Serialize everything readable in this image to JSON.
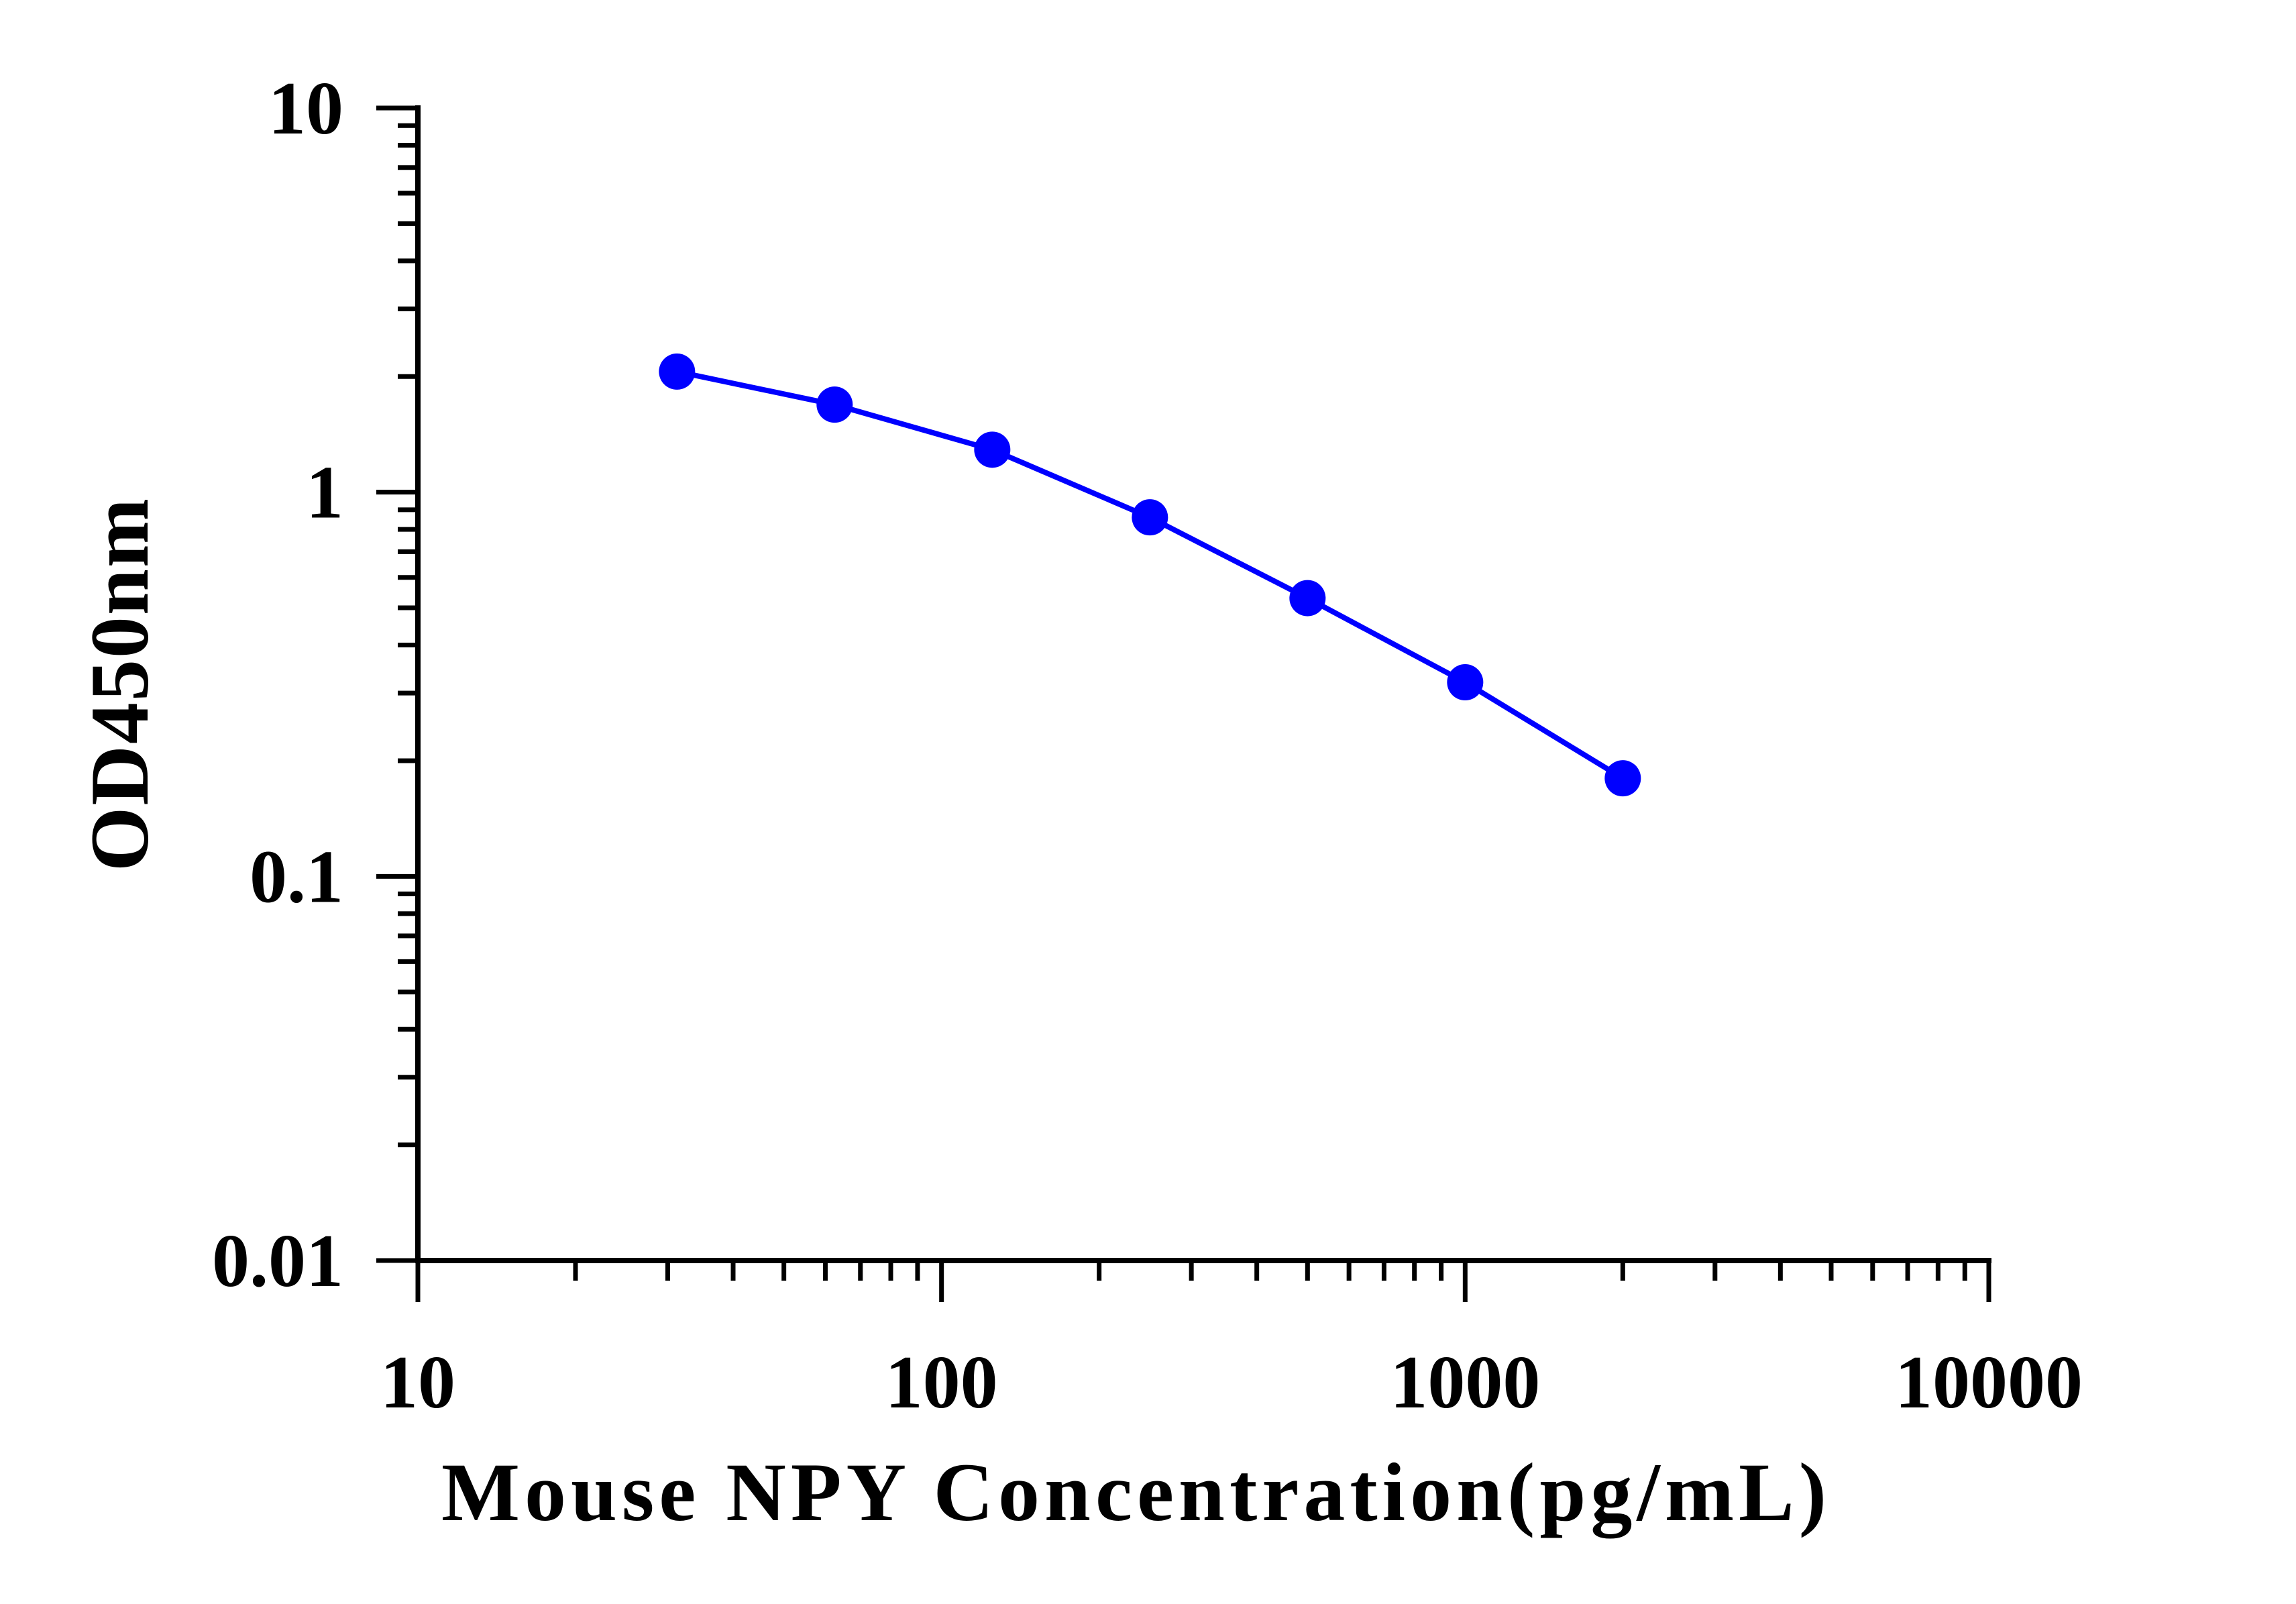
{
  "chart_data": {
    "type": "line",
    "title": "",
    "xlabel": "Mouse NPY Concentration(pg/mL)",
    "ylabel": "OD450nm",
    "x_scale": "log",
    "y_scale": "log",
    "xlim": [
      10,
      10000
    ],
    "ylim": [
      0.01,
      10
    ],
    "x_tick_labels": [
      "10",
      "100",
      "1000",
      "10000"
    ],
    "y_tick_labels": [
      "0.01",
      "0.1",
      "1",
      "10"
    ],
    "grid": false,
    "legend": "none",
    "series": [
      {
        "color": "#0000ff",
        "marker": "circle",
        "x": [
          31.25,
          62.5,
          125,
          250,
          500,
          1000,
          2000
        ],
        "y": [
          2.06,
          1.69,
          1.29,
          0.86,
          0.53,
          0.32,
          0.18
        ]
      }
    ]
  }
}
